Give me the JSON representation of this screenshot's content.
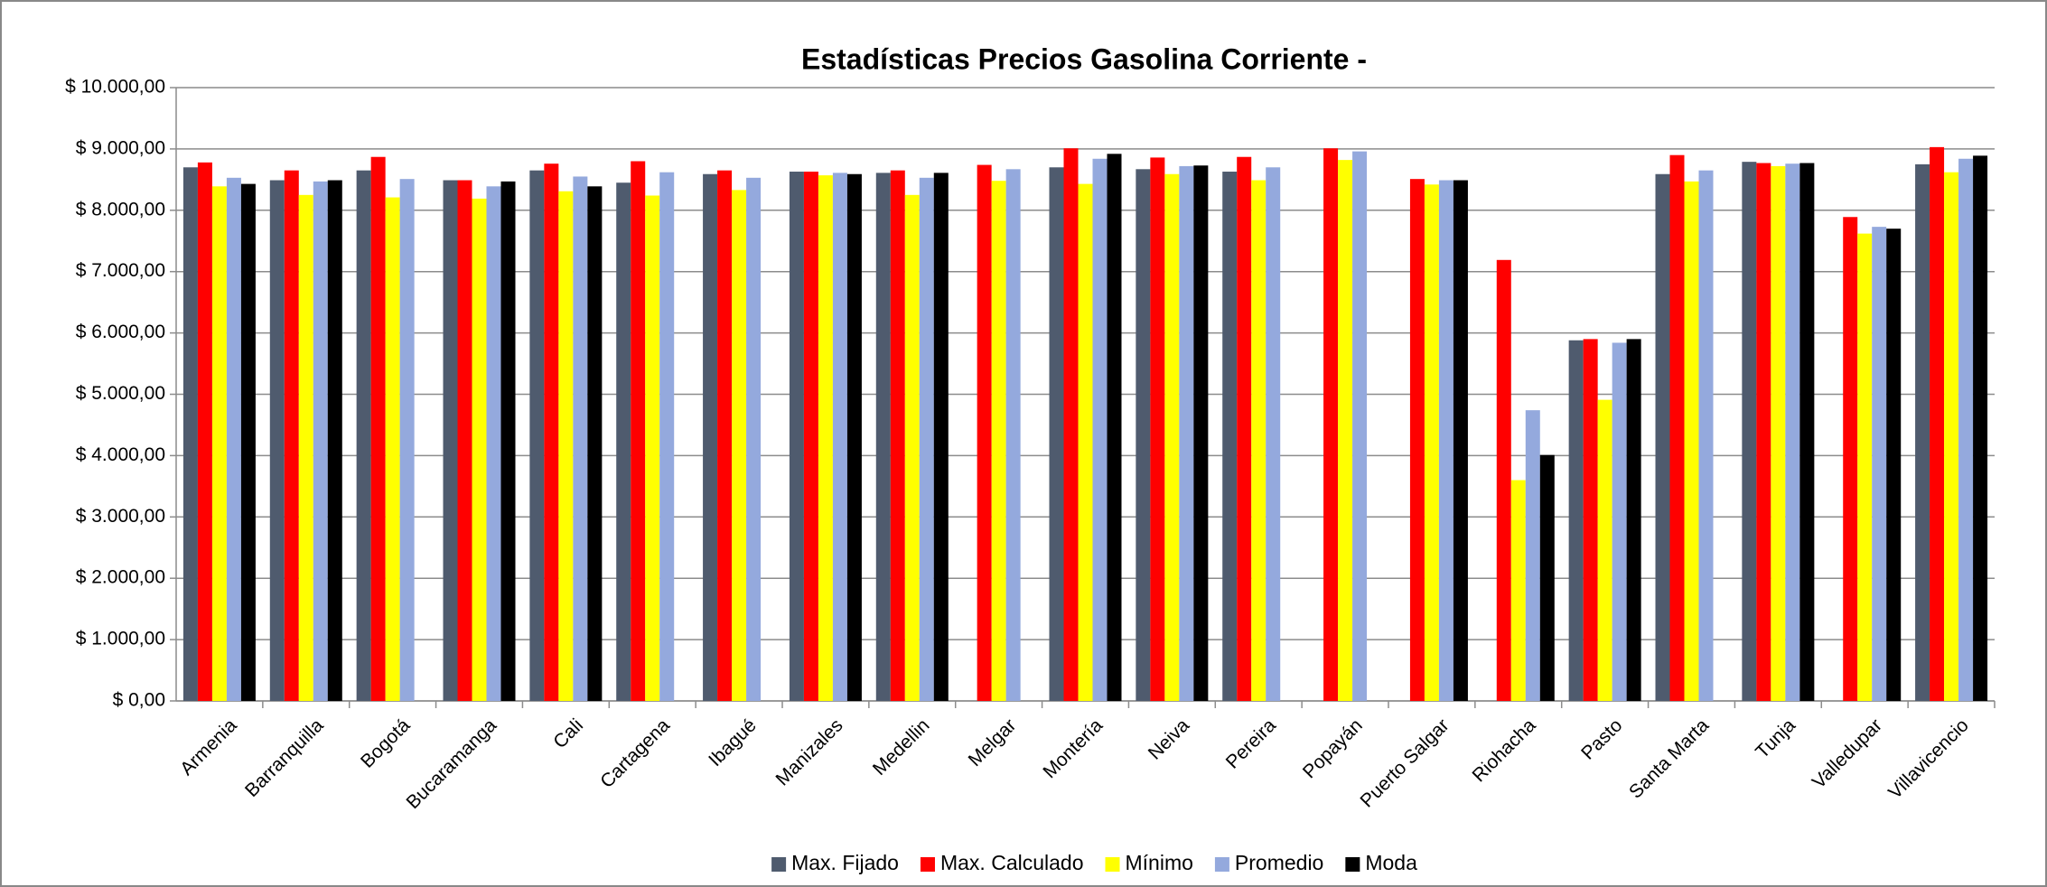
{
  "chart_data": {
    "type": "bar",
    "title": "Estadísticas Precios Gasolina Corriente -",
    "categories": [
      "Armenia",
      "Barranquilla",
      "Bogotá",
      "Bucaramanga",
      "Cali",
      "Cartagena",
      "Ibagué",
      "Manizales",
      "Medellin",
      "Melgar",
      "Montería",
      "Neiva",
      "Pereira",
      "Popayán",
      "Puerto Salgar",
      "Riohacha",
      "Pasto",
      "Santa Marta",
      "Tunja",
      "Valledupar",
      "Villavicencio"
    ],
    "series": [
      {
        "name": "Max. Fijado",
        "color": "#4f5b6e",
        "values": [
          8700,
          8490,
          8650,
          8490,
          8650,
          8450,
          8590,
          8630,
          8610,
          null,
          8700,
          8670,
          8630,
          null,
          null,
          null,
          5880,
          8590,
          8790,
          null,
          8750
        ]
      },
      {
        "name": "Max. Calculado",
        "color": "#ff0000",
        "values": [
          8780,
          8650,
          8870,
          8490,
          8760,
          8800,
          8650,
          8630,
          8650,
          8740,
          9010,
          8860,
          8870,
          9010,
          8510,
          7190,
          5900,
          8900,
          8770,
          7890,
          9030
        ]
      },
      {
        "name": "Mínimo",
        "color": "#ffff00",
        "values": [
          8390,
          8250,
          8210,
          8190,
          8310,
          8240,
          8330,
          8570,
          8250,
          8480,
          8430,
          8590,
          8490,
          8820,
          8420,
          3600,
          4910,
          8470,
          8720,
          7620,
          8620
        ]
      },
      {
        "name": "Promedio",
        "color": "#94a9dd",
        "values": [
          8530,
          8470,
          8510,
          8390,
          8550,
          8620,
          8530,
          8610,
          8530,
          8670,
          8840,
          8720,
          8700,
          8960,
          8490,
          4740,
          5840,
          8650,
          8760,
          7730,
          8840
        ]
      },
      {
        "name": "Moda",
        "color": "#000000",
        "values": [
          8430,
          8490,
          null,
          8470,
          8390,
          null,
          null,
          8590,
          8610,
          null,
          8920,
          8730,
          null,
          null,
          8490,
          4010,
          5900,
          null,
          8770,
          7700,
          8890
        ]
      }
    ],
    "ylim": [
      0,
      10000
    ],
    "yticks": [
      {
        "value": 0,
        "label": "$ 0,00"
      },
      {
        "value": 1000,
        "label": "$ 1.000,00"
      },
      {
        "value": 2000,
        "label": "$ 2.000,00"
      },
      {
        "value": 3000,
        "label": "$ 3.000,00"
      },
      {
        "value": 4000,
        "label": "$ 4.000,00"
      },
      {
        "value": 5000,
        "label": "$ 5.000,00"
      },
      {
        "value": 6000,
        "label": "$ 6.000,00"
      },
      {
        "value": 7000,
        "label": "$ 7.000,00"
      },
      {
        "value": 8000,
        "label": "$ 8.000,00"
      },
      {
        "value": 9000,
        "label": "$ 9.000,00"
      },
      {
        "value": 10000,
        "label": "$ 10.000,00"
      }
    ],
    "grid": true,
    "legend": "bottom"
  }
}
